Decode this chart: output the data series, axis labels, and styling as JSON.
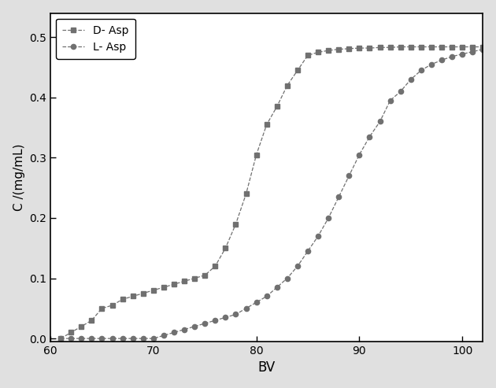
{
  "title": "",
  "xlabel": "BV",
  "ylabel": "C /(mg/mL)",
  "xlim": [
    60,
    102
  ],
  "ylim": [
    -0.005,
    0.54
  ],
  "xticks": [
    60,
    70,
    80,
    90,
    100
  ],
  "yticks": [
    0.0,
    0.1,
    0.2,
    0.3,
    0.4,
    0.5
  ],
  "yticklabels": [
    "0.0",
    "0.1",
    "0.2",
    "0.3",
    "0.4",
    "0.5"
  ],
  "bg_color": "#e0e0e0",
  "plot_bg_color": "#e8e8e8",
  "line_color": "#707070",
  "D_Asp_x": [
    61,
    62,
    63,
    64,
    65,
    66,
    67,
    68,
    69,
    70,
    71,
    72,
    73,
    74,
    75,
    76,
    77,
    78,
    79,
    80,
    81,
    82,
    83,
    84,
    85,
    86,
    87,
    88,
    89,
    90,
    91,
    92,
    93,
    94,
    95,
    96,
    97,
    98,
    99,
    100,
    101,
    102
  ],
  "D_Asp_y": [
    0.0,
    0.01,
    0.02,
    0.03,
    0.05,
    0.055,
    0.065,
    0.07,
    0.075,
    0.08,
    0.085,
    0.09,
    0.095,
    0.1,
    0.105,
    0.12,
    0.15,
    0.19,
    0.24,
    0.305,
    0.355,
    0.385,
    0.42,
    0.445,
    0.47,
    0.475,
    0.478,
    0.48,
    0.481,
    0.482,
    0.482,
    0.483,
    0.483,
    0.484,
    0.484,
    0.484,
    0.484,
    0.484,
    0.484,
    0.484,
    0.484,
    0.484
  ],
  "L_Asp_x": [
    61,
    62,
    63,
    64,
    65,
    66,
    67,
    68,
    69,
    70,
    71,
    72,
    73,
    74,
    75,
    76,
    77,
    78,
    79,
    80,
    81,
    82,
    83,
    84,
    85,
    86,
    87,
    88,
    89,
    90,
    91,
    92,
    93,
    94,
    95,
    96,
    97,
    98,
    99,
    100,
    101,
    102
  ],
  "L_Asp_y": [
    0.0,
    0.0,
    0.0,
    0.0,
    0.0,
    0.0,
    0.0,
    0.0,
    0.0,
    0.0,
    0.005,
    0.01,
    0.015,
    0.02,
    0.025,
    0.03,
    0.035,
    0.04,
    0.05,
    0.06,
    0.07,
    0.085,
    0.1,
    0.12,
    0.145,
    0.17,
    0.2,
    0.235,
    0.27,
    0.305,
    0.335,
    0.36,
    0.395,
    0.41,
    0.43,
    0.445,
    0.455,
    0.462,
    0.468,
    0.472,
    0.476,
    0.48
  ],
  "legend_labels": [
    "D- Asp",
    "L- Asp"
  ]
}
